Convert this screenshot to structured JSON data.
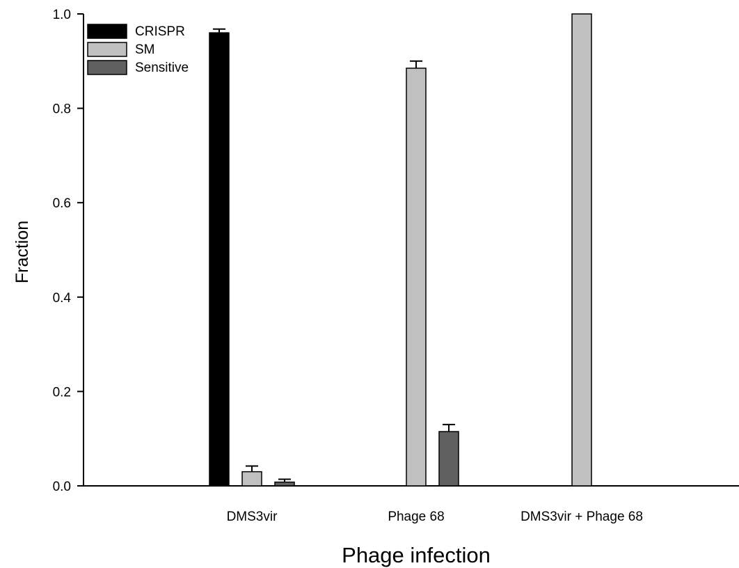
{
  "chart_data": {
    "type": "bar",
    "title": "",
    "xlabel": "Phage infection",
    "ylabel": "Fraction",
    "ylim": [
      0,
      1.0
    ],
    "yticks": [
      "0.0",
      "0.2",
      "0.4",
      "0.6",
      "0.8",
      "1.0"
    ],
    "grid": false,
    "legend_position": "top-left",
    "categories": [
      "DMS3vir",
      "Phage 68",
      "DMS3vir + Phage 68"
    ],
    "series": [
      {
        "name": "CRISPR",
        "color": "#000000",
        "values": [
          0.96,
          0.0,
          0.0
        ],
        "errors": [
          0.008,
          0.0,
          0.0
        ]
      },
      {
        "name": "SM",
        "color": "#c0c0c0",
        "values": [
          0.03,
          0.885,
          1.0
        ],
        "errors": [
          0.012,
          0.015,
          0.0
        ]
      },
      {
        "name": "Sensitive",
        "color": "#606060",
        "values": [
          0.008,
          0.115,
          0.0
        ],
        "errors": [
          0.006,
          0.015,
          0.0
        ]
      }
    ]
  }
}
